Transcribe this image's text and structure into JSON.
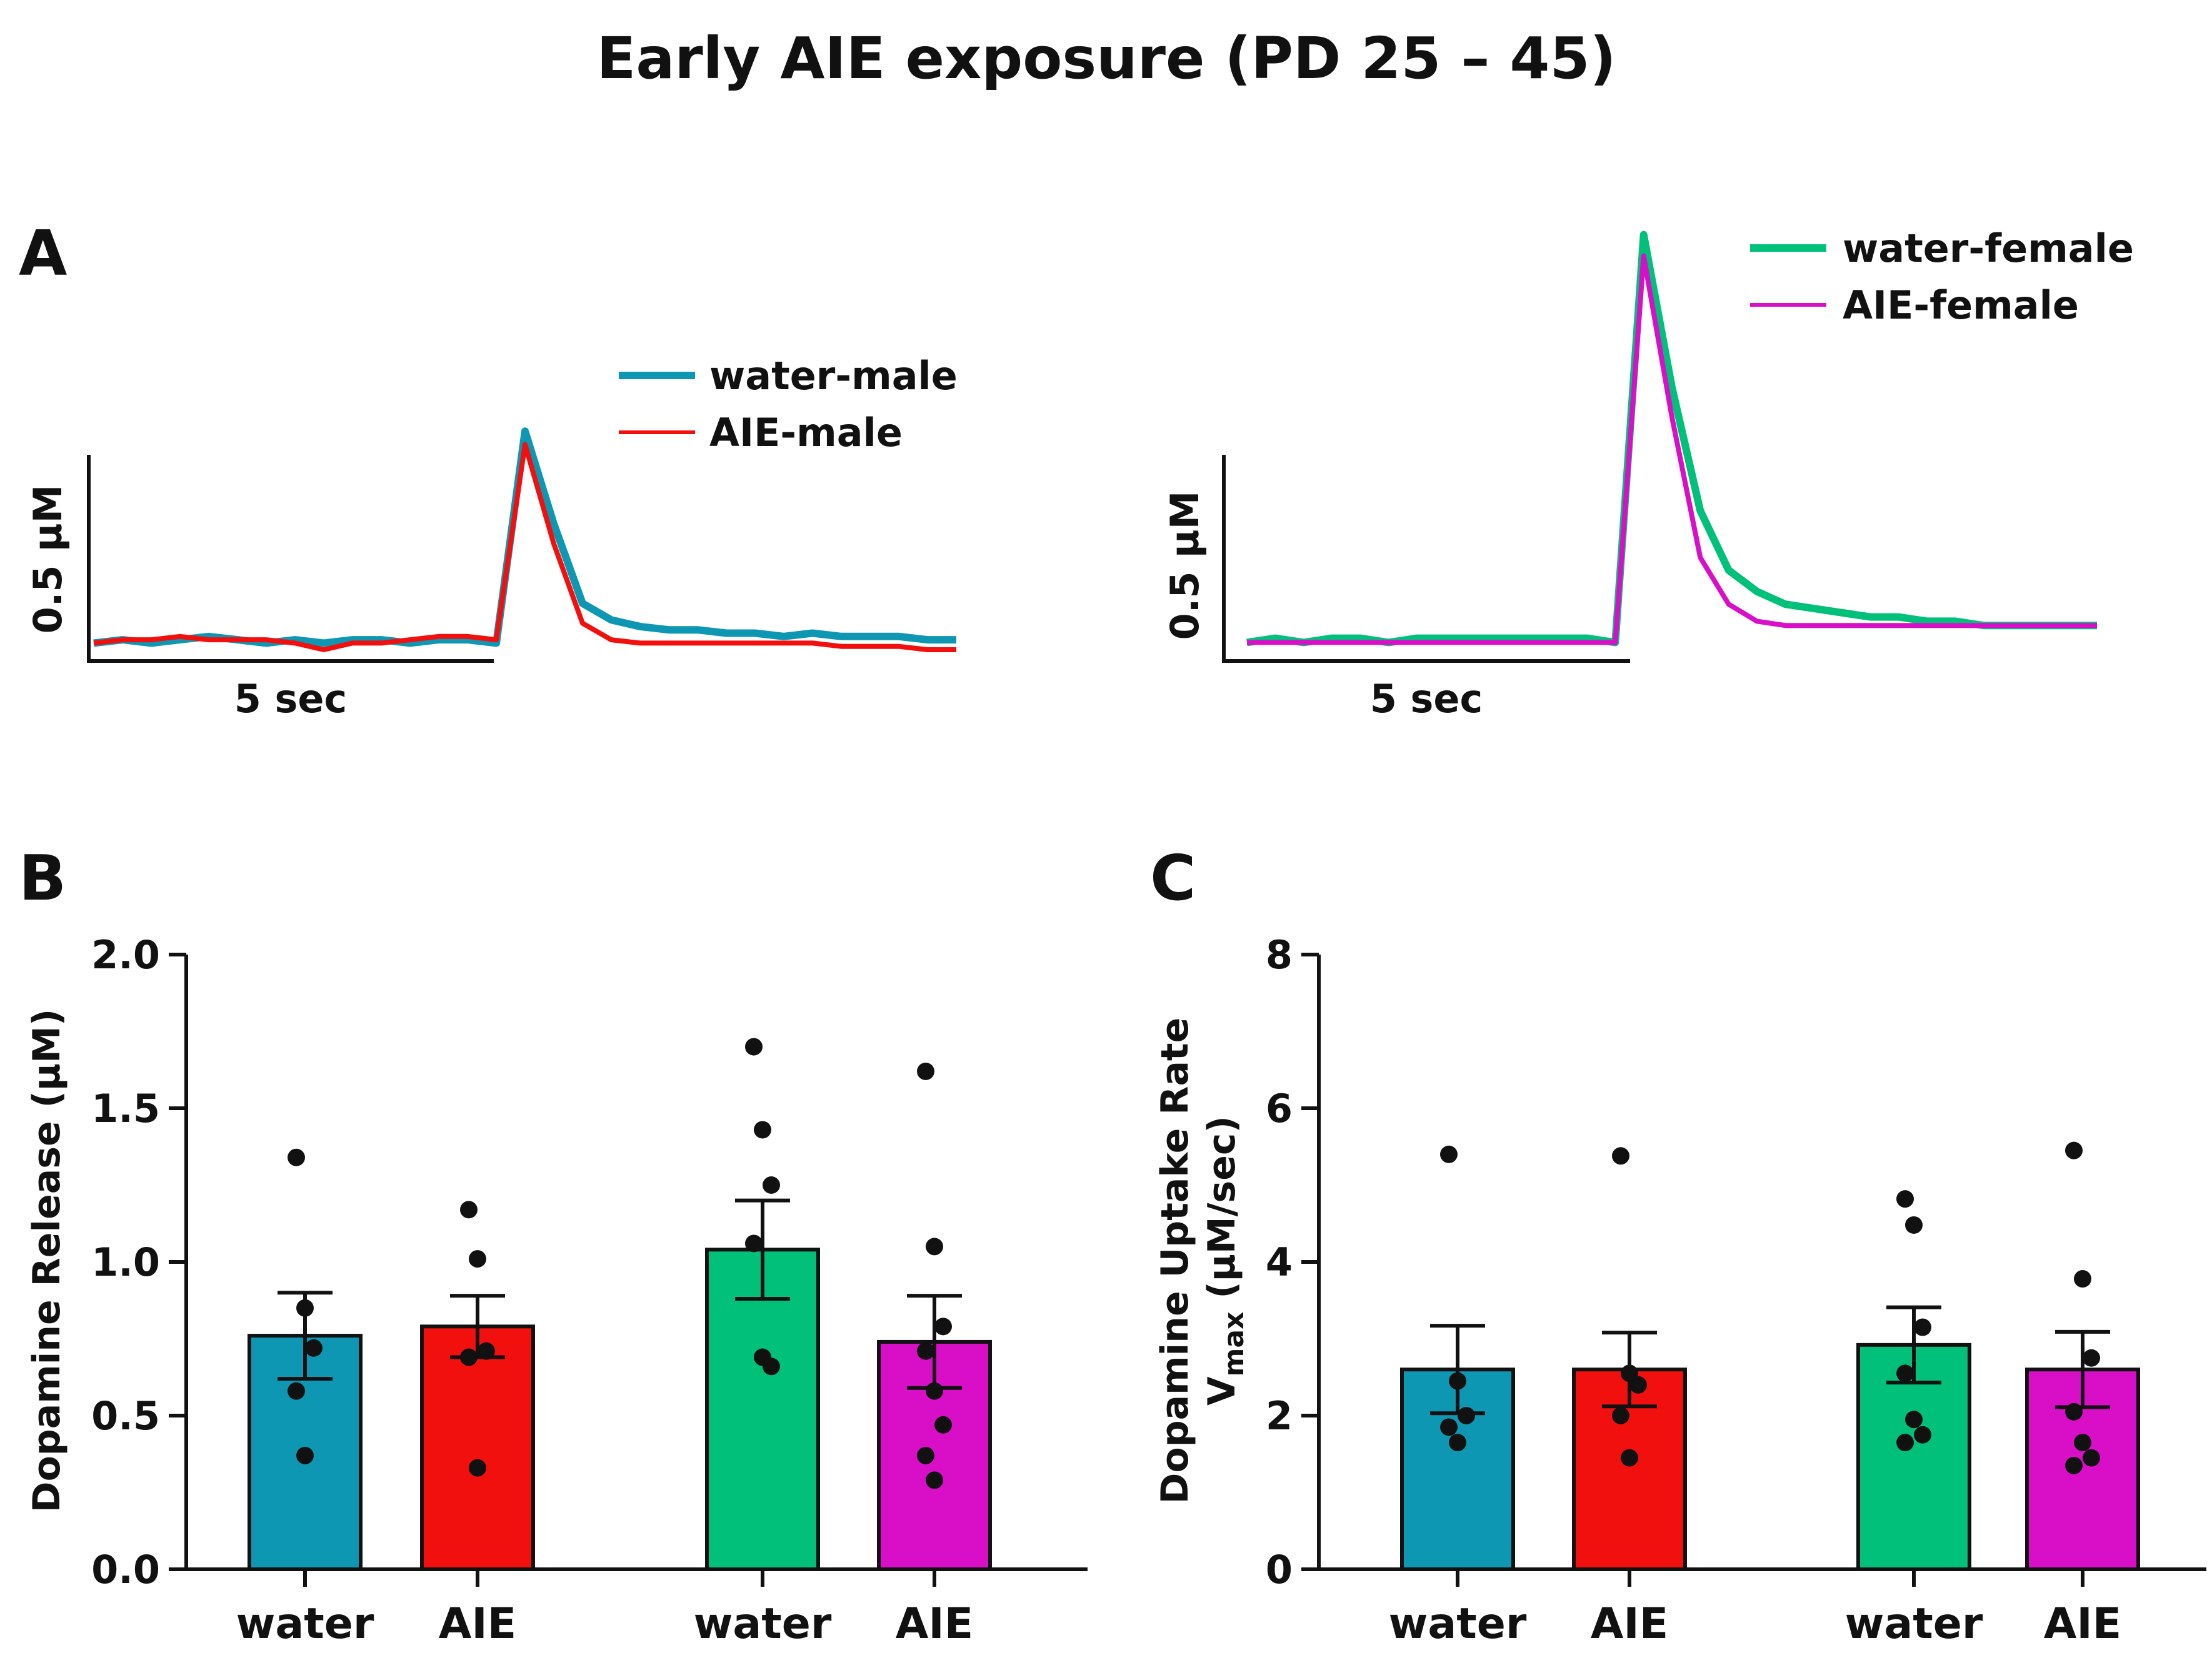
{
  "figure_title": "Early AIE exposure (PD 25 – 45)",
  "colors": {
    "water_male": "#0e97b2",
    "aie_male": "#f2100f",
    "water_female": "#00c07a",
    "aie_female": "#d90fc8",
    "axis": "#111111"
  },
  "chart_data": [
    {
      "id": "A-male",
      "panel_label": "A",
      "type": "line",
      "title": "",
      "scale_bar": {
        "y_label": "0.5 µM",
        "x_label": "5 sec"
      },
      "x": [
        0,
        1,
        2,
        3,
        4,
        5,
        6,
        7,
        8,
        9,
        10,
        11,
        12,
        13,
        14,
        15,
        16,
        17,
        18,
        19,
        20,
        21,
        22,
        23,
        24,
        25,
        26,
        27,
        28,
        29,
        30
      ],
      "series": [
        {
          "name": "water-male",
          "color": "#0e97b2",
          "values": [
            0.02,
            0.03,
            0.02,
            0.03,
            0.04,
            0.03,
            0.02,
            0.03,
            0.02,
            0.03,
            0.03,
            0.02,
            0.03,
            0.03,
            0.02,
            0.66,
            0.38,
            0.14,
            0.09,
            0.07,
            0.06,
            0.06,
            0.05,
            0.05,
            0.04,
            0.05,
            0.04,
            0.04,
            0.04,
            0.03,
            0.03
          ]
        },
        {
          "name": "AIE-male",
          "color": "#f2100f",
          "values": [
            0.02,
            0.03,
            0.03,
            0.04,
            0.03,
            0.03,
            0.03,
            0.02,
            0.0,
            0.02,
            0.02,
            0.03,
            0.04,
            0.04,
            0.03,
            0.62,
            0.32,
            0.08,
            0.03,
            0.02,
            0.02,
            0.02,
            0.02,
            0.02,
            0.02,
            0.02,
            0.01,
            0.01,
            0.01,
            0.0,
            0.0
          ]
        }
      ]
    },
    {
      "id": "A-female",
      "panel_label": "",
      "type": "line",
      "title": "",
      "scale_bar": {
        "y_label": "0.5 µM",
        "x_label": "5 sec"
      },
      "x": [
        0,
        1,
        2,
        3,
        4,
        5,
        6,
        7,
        8,
        9,
        10,
        11,
        12,
        13,
        14,
        15,
        16,
        17,
        18,
        19,
        20,
        21,
        22,
        23,
        24,
        25,
        26,
        27,
        28,
        29,
        30
      ],
      "series": [
        {
          "name": "water-female",
          "color": "#00c07a",
          "values": [
            0.02,
            0.03,
            0.02,
            0.03,
            0.03,
            0.02,
            0.03,
            0.03,
            0.03,
            0.03,
            0.03,
            0.03,
            0.03,
            0.02,
            0.98,
            0.62,
            0.33,
            0.19,
            0.14,
            0.11,
            0.1,
            0.09,
            0.08,
            0.08,
            0.07,
            0.07,
            0.06,
            0.06,
            0.06,
            0.06,
            0.06
          ]
        },
        {
          "name": "AIE-female",
          "color": "#d90fc8",
          "values": [
            0.02,
            0.02,
            0.02,
            0.02,
            0.02,
            0.02,
            0.02,
            0.02,
            0.02,
            0.02,
            0.02,
            0.02,
            0.02,
            0.02,
            0.93,
            0.55,
            0.22,
            0.11,
            0.07,
            0.06,
            0.06,
            0.06,
            0.06,
            0.06,
            0.06,
            0.06,
            0.06,
            0.06,
            0.06,
            0.06,
            0.06
          ]
        }
      ]
    },
    {
      "id": "B",
      "panel_label": "B",
      "type": "bar",
      "title": "",
      "ylabel": "Dopamine Release (µM)",
      "ylim": [
        0,
        2.0
      ],
      "yticks": [
        "0.0",
        "0.5",
        "1.0",
        "1.5",
        "2.0"
      ],
      "ytick_values": [
        0,
        0.5,
        1.0,
        1.5,
        2.0
      ],
      "categories": [
        "water",
        "AIE",
        "water",
        "AIE"
      ],
      "groups": [
        "male",
        "male",
        "female",
        "female"
      ],
      "values": [
        0.76,
        0.79,
        1.04,
        0.74
      ],
      "sem": [
        0.14,
        0.1,
        0.16,
        0.15
      ],
      "bar_colors": [
        "#0e97b2",
        "#f2100f",
        "#00c07a",
        "#d90fc8"
      ],
      "points": [
        [
          1.34,
          0.85,
          0.72,
          0.58,
          0.37
        ],
        [
          1.17,
          1.01,
          0.71,
          0.69,
          0.33
        ],
        [
          1.7,
          1.43,
          1.25,
          1.06,
          0.69,
          0.66
        ],
        [
          1.62,
          1.05,
          0.79,
          0.71,
          0.58,
          0.47,
          0.37,
          0.29
        ]
      ]
    },
    {
      "id": "C",
      "panel_label": "C",
      "type": "bar",
      "title": "",
      "ylabel": "Dopamine Uptake Rate",
      "ylabel_line2": "V",
      "ylabel_sub": "max",
      "ylabel_suffix": " (µM/sec)",
      "ylim": [
        0,
        8
      ],
      "yticks": [
        "0",
        "2",
        "4",
        "6",
        "8"
      ],
      "ytick_values": [
        0,
        2,
        4,
        6,
        8
      ],
      "categories": [
        "water",
        "AIE",
        "water",
        "AIE"
      ],
      "groups": [
        "male",
        "male",
        "female",
        "female"
      ],
      "values": [
        2.6,
        2.6,
        2.92,
        2.6
      ],
      "sem": [
        0.57,
        0.48,
        0.49,
        0.49
      ],
      "bar_colors": [
        "#0e97b2",
        "#f2100f",
        "#00c07a",
        "#d90fc8"
      ],
      "points": [
        [
          5.4,
          2.45,
          2.0,
          1.85,
          1.65
        ],
        [
          5.38,
          2.55,
          2.4,
          2.0,
          1.45
        ],
        [
          4.82,
          4.48,
          3.15,
          2.55,
          1.95,
          1.75,
          1.65
        ],
        [
          5.45,
          3.78,
          2.75,
          2.05,
          1.65,
          1.45,
          1.35
        ]
      ]
    }
  ]
}
